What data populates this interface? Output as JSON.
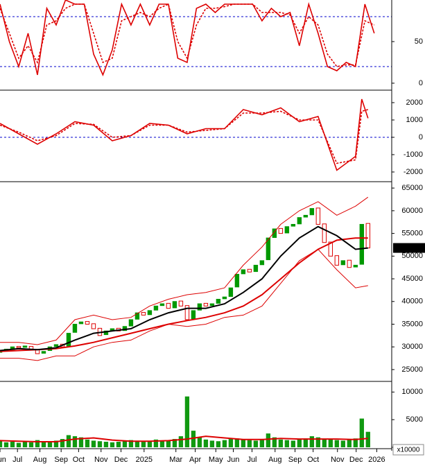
{
  "chart_data": [
    {
      "type": "line",
      "xlim": [
        0,
        62.8
      ],
      "ylim": [
        -6.7,
        100
      ],
      "yticks": [
        0,
        50
      ],
      "levels": [
        20,
        80
      ],
      "level_color": "#0000cc",
      "series": [
        {
          "color": "#dd0000",
          "style": "solid",
          "x": [
            0,
            1.5,
            3,
            4.5,
            6,
            7.5,
            9,
            10.5,
            12,
            13.5,
            15,
            16.5,
            18,
            19.5,
            21,
            22.5,
            24,
            25.5,
            27,
            28.5,
            30,
            31.5,
            33,
            34.5,
            36,
            37.5,
            39,
            40.5,
            42,
            43.5,
            45,
            46.5,
            48,
            49.5,
            51,
            52.5,
            54,
            55.5,
            57,
            58.5,
            60
          ],
          "values": [
            95,
            50,
            20,
            60,
            10,
            90,
            70,
            100,
            95,
            95,
            35,
            10,
            40,
            95,
            70,
            95,
            70,
            95,
            95,
            30,
            25,
            90,
            95,
            85,
            95,
            95,
            95,
            95,
            75,
            90,
            80,
            85,
            45,
            95,
            60,
            20,
            15,
            25,
            20,
            95,
            60
          ]
        },
        {
          "color": "#dd0000",
          "style": "dashed",
          "x": [
            0,
            1.5,
            3,
            4.5,
            6,
            7.5,
            9,
            10.5,
            12,
            13.5,
            15,
            16.5,
            18,
            19.5,
            21,
            22.5,
            24,
            25.5,
            27,
            28.5,
            30,
            31.5,
            33,
            34.5,
            36,
            37.5,
            39,
            40.5,
            42,
            43.5,
            45,
            46.5,
            48,
            49.5,
            51,
            52.5,
            54,
            55.5,
            57,
            58.5,
            60
          ],
          "values": [
            90,
            60,
            30,
            45,
            25,
            70,
            75,
            90,
            95,
            95,
            60,
            25,
            30,
            75,
            80,
            85,
            80,
            90,
            95,
            50,
            30,
            70,
            90,
            90,
            92,
            95,
            95,
            95,
            85,
            85,
            85,
            82,
            60,
            80,
            70,
            35,
            20,
            22,
            22,
            75,
            70
          ]
        }
      ]
    },
    {
      "type": "line",
      "xlim": [
        0,
        62.8
      ],
      "ylim": [
        -2480,
        2640
      ],
      "yticks": [
        -2000,
        -1000,
        0,
        1000,
        2000
      ],
      "levels": [
        0
      ],
      "level_color": "#0000cc",
      "series": [
        {
          "color": "#dd0000",
          "style": "solid",
          "x": [
            0,
            3,
            6,
            9,
            12,
            15,
            18,
            21,
            24,
            27,
            30,
            33,
            36,
            39,
            42,
            45,
            48,
            51,
            54,
            57,
            58,
            59
          ],
          "values": [
            800,
            200,
            -400,
            200,
            900,
            700,
            -200,
            100,
            800,
            700,
            200,
            500,
            500,
            1600,
            1300,
            1700,
            900,
            1200,
            -1900,
            -1100,
            2200,
            1100
          ]
        },
        {
          "color": "#dd0000",
          "style": "dashed",
          "x": [
            0,
            3,
            6,
            9,
            12,
            15,
            18,
            21,
            24,
            27,
            30,
            33,
            36,
            39,
            42,
            45,
            48,
            51,
            54,
            57,
            58,
            59
          ],
          "values": [
            700,
            300,
            -200,
            100,
            800,
            750,
            0,
            100,
            700,
            700,
            300,
            400,
            500,
            1400,
            1400,
            1500,
            1000,
            1000,
            -1500,
            -1300,
            1500,
            1600
          ]
        }
      ]
    },
    {
      "type": "candlestick",
      "xlim": [
        0,
        62.8
      ],
      "ylim": [
        22700,
        66400
      ],
      "yticks": [
        25000,
        30000,
        35000,
        40000,
        45000,
        50000,
        55000,
        60000,
        65000
      ],
      "up_color": "#009900",
      "down_color": "#dd0000",
      "last_label": "51800.00",
      "open": [
        28800,
        29100,
        29400,
        30100,
        29900,
        30100,
        29400,
        28600,
        29200,
        30100,
        30600,
        30200,
        33200,
        35100,
        35600,
        35100,
        34100,
        32700,
        33600,
        34100,
        33600,
        34600,
        36100,
        37600,
        37100,
        38100,
        39100,
        39600,
        38600,
        40100,
        39100,
        36200,
        38100,
        39600,
        39100,
        39600,
        40600,
        41100,
        43200,
        46100,
        47100,
        46600,
        48100,
        49200,
        54100,
        56100,
        55100,
        56600,
        57100,
        58600,
        59100,
        60600,
        57100,
        53100,
        50100,
        48100,
        49100,
        47600,
        48200,
        57200
      ],
      "close": [
        29000,
        29500,
        30000,
        29800,
        30200,
        29500,
        28500,
        29000,
        30000,
        30500,
        30000,
        33000,
        35000,
        35500,
        35000,
        34000,
        32500,
        33500,
        34000,
        33500,
        34500,
        36000,
        37500,
        37000,
        38000,
        39000,
        39500,
        38500,
        40000,
        39000,
        36000,
        38000,
        39500,
        39000,
        39500,
        40500,
        41000,
        43000,
        46000,
        47000,
        46500,
        48000,
        49000,
        54000,
        56000,
        55000,
        56500,
        57000,
        58500,
        59000,
        60500,
        57000,
        53000,
        50000,
        48000,
        49000,
        47500,
        48000,
        57000,
        51800
      ],
      "series": [
        {
          "color": "#dd0000",
          "style": "thin",
          "x": [
            0,
            3,
            6,
            9,
            12,
            15,
            18,
            21,
            24,
            27,
            30,
            33,
            36,
            39,
            42,
            45,
            48,
            51,
            54,
            57,
            59
          ],
          "values": [
            31000,
            31000,
            30500,
            31500,
            36000,
            37000,
            36000,
            36500,
            39000,
            40500,
            41500,
            42000,
            43000,
            48000,
            52000,
            57000,
            60000,
            62000,
            59000,
            61000,
            63000
          ]
        },
        {
          "color": "#dd0000",
          "style": "thin",
          "x": [
            0,
            3,
            6,
            9,
            12,
            15,
            18,
            21,
            24,
            27,
            30,
            33,
            36,
            39,
            42,
            45,
            48,
            51,
            54,
            57,
            59
          ],
          "values": [
            27500,
            27500,
            27000,
            28000,
            28000,
            30000,
            31000,
            31500,
            33500,
            35000,
            34500,
            35000,
            36500,
            37000,
            39000,
            44000,
            49000,
            51500,
            47000,
            43000,
            43500
          ]
        },
        {
          "color": "#dd0000",
          "style": "thick",
          "x": [
            0,
            3,
            6,
            9,
            12,
            15,
            18,
            21,
            24,
            27,
            30,
            33,
            36,
            39,
            42,
            45,
            48,
            51,
            54,
            57,
            59
          ],
          "values": [
            29000,
            29200,
            29400,
            29600,
            30200,
            31000,
            32000,
            33000,
            34000,
            35000,
            35800,
            36500,
            37500,
            39000,
            41500,
            45000,
            48500,
            51500,
            53500,
            54000,
            54000
          ]
        },
        {
          "color": "#000000",
          "style": "thick",
          "x": [
            0,
            3,
            6,
            9,
            12,
            15,
            18,
            21,
            24,
            27,
            30,
            33,
            36,
            39,
            42,
            45,
            48,
            51,
            54,
            57,
            59
          ],
          "values": [
            29200,
            29600,
            29400,
            29800,
            31500,
            33000,
            33500,
            34000,
            36000,
            37500,
            38500,
            38500,
            39500,
            42000,
            45000,
            50000,
            54000,
            56500,
            54500,
            51500,
            51800
          ]
        }
      ]
    },
    {
      "type": "bar",
      "xlim": [
        0,
        62.8
      ],
      "ylim": [
        0,
        11800
      ],
      "yticks": [
        0,
        5000,
        10000
      ],
      "color": "#119911",
      "unit_label": "x10000",
      "values": [
        1200,
        900,
        1000,
        800,
        1100,
        900,
        1300,
        1000,
        900,
        1200,
        1500,
        2200,
        2000,
        1800,
        1400,
        1200,
        1100,
        1000,
        900,
        1000,
        1100,
        1300,
        1200,
        1000,
        1100,
        1400,
        1200,
        1300,
        1500,
        2000,
        9200,
        3000,
        1800,
        1400,
        1200,
        1100,
        1300,
        1500,
        1600,
        1400,
        1300,
        1200,
        1500,
        2500,
        1800,
        1400,
        1300,
        1200,
        1500,
        1600,
        2000,
        1800,
        1500,
        1400,
        1300,
        1200,
        1500,
        1600,
        5200,
        2800
      ],
      "series": [
        {
          "color": "#dd0000",
          "style": "thick",
          "x": [
            0,
            3,
            6,
            9,
            12,
            15,
            18,
            21,
            24,
            27,
            30,
            33,
            36,
            39,
            42,
            45,
            48,
            51,
            54,
            57,
            59
          ],
          "values": [
            1200,
            1100,
            1000,
            1000,
            1500,
            1700,
            1300,
            1100,
            1100,
            1200,
            1500,
            2000,
            1700,
            1400,
            1400,
            1600,
            1500,
            1500,
            1500,
            1400,
            1600
          ]
        }
      ],
      "xticks": [
        {
          "value": 0,
          "label": "Jun"
        },
        {
          "value": 2.8,
          "label": "Jul"
        },
        {
          "value": 6.4,
          "label": "Aug"
        },
        {
          "value": 9.8,
          "label": "Sep"
        },
        {
          "value": 12.6,
          "label": "Oct"
        },
        {
          "value": 16.2,
          "label": "Nov"
        },
        {
          "value": 19.4,
          "label": "Dec"
        },
        {
          "value": 23.1,
          "label": "2025"
        },
        {
          "value": 28.2,
          "label": "Mar"
        },
        {
          "value": 31.3,
          "label": "Apr"
        },
        {
          "value": 34.6,
          "label": "May"
        },
        {
          "value": 37.4,
          "label": "Jun"
        },
        {
          "value": 40.4,
          "label": "Jul"
        },
        {
          "value": 44.1,
          "label": "Aug"
        },
        {
          "value": 47.3,
          "label": "Sep"
        },
        {
          "value": 50.2,
          "label": "Oct"
        },
        {
          "value": 54.1,
          "label": "Nov"
        },
        {
          "value": 57.1,
          "label": "Dec"
        },
        {
          "value": 60.4,
          "label": "2026"
        }
      ]
    }
  ]
}
